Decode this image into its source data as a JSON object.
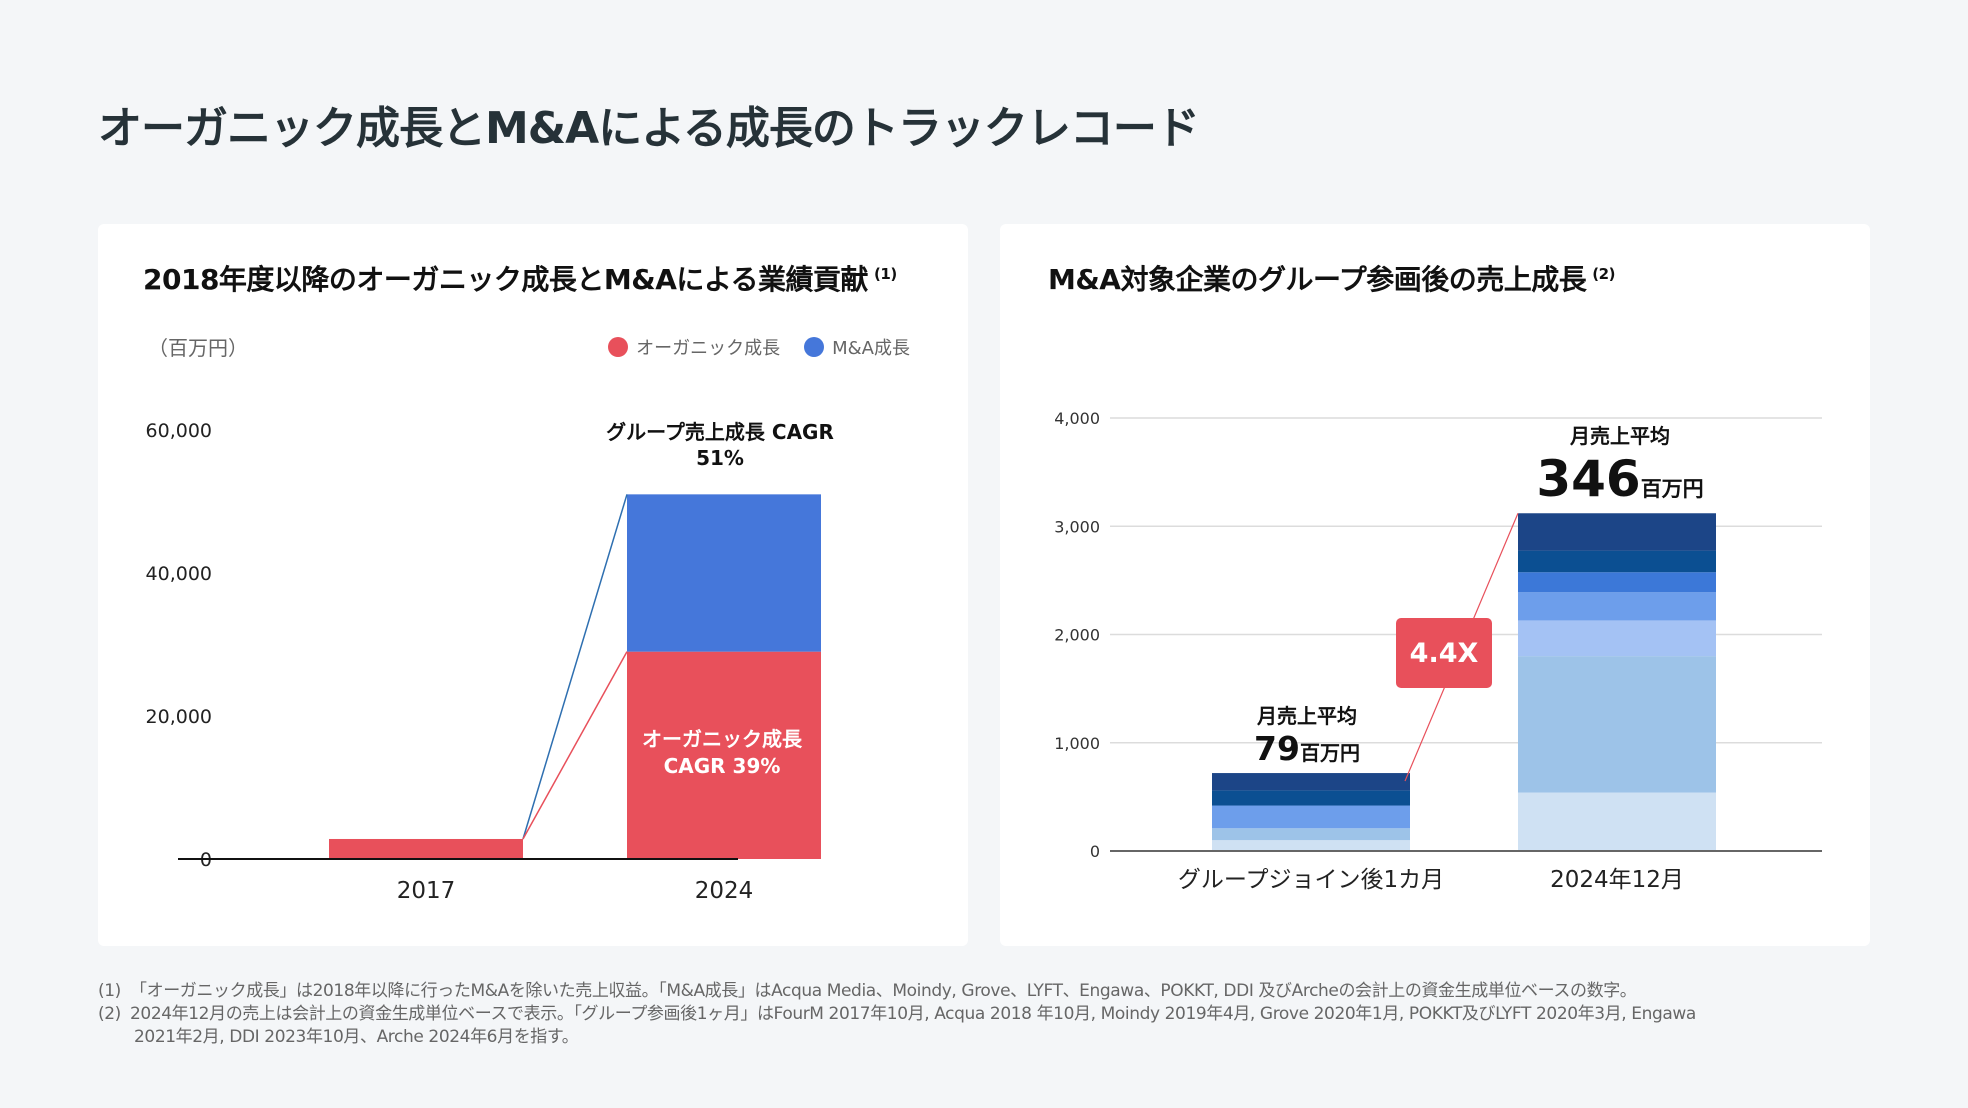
{
  "page": {
    "title": "オーガニック成長とM&Aによる成長のトラックレコード"
  },
  "colors": {
    "background": "#f4f6f8",
    "card": "#ffffff",
    "organic": "#e8505b",
    "ma": "#4577da",
    "callout": "#e8505b",
    "blue_layers": [
      "#cfe1f3",
      "#9dc3e8",
      "#a4c2f4",
      "#6d9eeb",
      "#3c78d8",
      "#0b4f92",
      "#1c4587"
    ]
  },
  "left_card": {
    "title": "2018年度以降のオーガニック成長とM&Aによる業績貢献",
    "footnote_ref": "(1)",
    "unit": "（百万円）",
    "legend": [
      {
        "label": "オーガニック成長",
        "color_key": "organic"
      },
      {
        "label": "M&A成長",
        "color_key": "ma"
      }
    ]
  },
  "right_card": {
    "title": "M&A対象企業のグループ参画後の売上成長",
    "footnote_ref": "(2)"
  },
  "chart_data": [
    {
      "type": "bar",
      "stacked": true,
      "title": "2018年度以降のオーガニック成長とM&Aによる業績貢献",
      "ylabel": "（百万円）",
      "xlabel": "",
      "categories": [
        "2017",
        "2024"
      ],
      "series": [
        {
          "name": "オーガニック成長",
          "values": [
            2800,
            29000
          ],
          "color": "#e8505b"
        },
        {
          "name": "M&A成長",
          "values": [
            0,
            22000
          ],
          "color": "#4577da"
        }
      ],
      "ylim": [
        0,
        60000
      ],
      "yticks": [
        0,
        20000,
        40000,
        60000
      ],
      "ytick_labels": [
        "0",
        "20,000",
        "40,000",
        "60,000"
      ],
      "grid": false,
      "legend_position": "top-right",
      "annotations": {
        "total_cagr_line1": "グループ売上成長 CAGR",
        "total_cagr_line2": "51%",
        "organic_cagr_line1": "オーガニック成長",
        "organic_cagr_line2": "CAGR 39%"
      }
    },
    {
      "type": "bar",
      "stacked": true,
      "title": "M&A対象企業のグループ参画後の売上成長",
      "xlabel": "",
      "ylabel": "",
      "categories": [
        "グループジョイン後1カ月",
        "2024年12月"
      ],
      "series": [
        {
          "name": "layer-1",
          "values": [
            100,
            540
          ],
          "color": "#cfe1f3"
        },
        {
          "name": "layer-2",
          "values": [
            110,
            1260
          ],
          "color": "#9dc3e8"
        },
        {
          "name": "layer-3",
          "values": [
            0,
            330
          ],
          "color": "#a4c2f4"
        },
        {
          "name": "layer-4",
          "values": [
            210,
            260
          ],
          "color": "#6d9eeb"
        },
        {
          "name": "layer-5",
          "values": [
            0,
            185
          ],
          "color": "#3c78d8"
        },
        {
          "name": "layer-6",
          "values": [
            140,
            200
          ],
          "color": "#0b4f92"
        },
        {
          "name": "layer-7",
          "values": [
            160,
            345
          ],
          "color": "#1c4587"
        }
      ],
      "ylim": [
        0,
        4000
      ],
      "yticks": [
        0,
        1000,
        2000,
        3000,
        4000
      ],
      "ytick_labels": [
        "0",
        "1,000",
        "2,000",
        "3,000",
        "4,000"
      ],
      "grid": true,
      "annotations": {
        "bar1_label": "月売上平均",
        "bar1_value": "79",
        "bar1_unit": "百万円",
        "bar2_label": "月売上平均",
        "bar2_value": "346",
        "bar2_unit": "百万円",
        "multiple": "4.4X"
      }
    }
  ],
  "footnotes": [
    {
      "num": "(1)",
      "text": "「オーガニック成長」は2018年以降に行ったM&Aを除いた売上収益。「M&A成長」はAcqua Media、Moindy, Grove、LYFT、Engawa、POKKT, DDI 及びArcheの会計上の資金生成単位ベースの数字。"
    },
    {
      "num": "(2)",
      "text": "2024年12月の売上は会計上の資金生成単位ベースで表示。「グループ参画後1ヶ月」はFourM 2017年10月, Acqua 2018 年10月, Moindy 2019年4月, Grove 2020年1月, POKKT及びLYFT 2020年3月, Engawa",
      "continuation": "2021年2月, DDI 2023年10月、Arche 2024年6月を指す。"
    }
  ]
}
